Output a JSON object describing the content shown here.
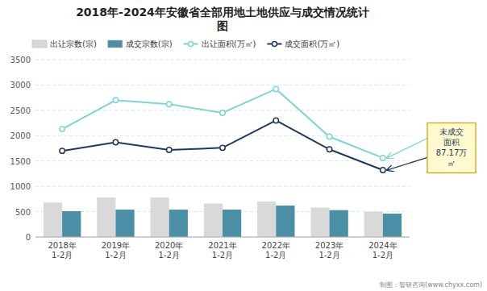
{
  "chart_data": {
    "type": "bar",
    "title": "2018年-2024年安徽省全部用地土地供应与成交情况统计\n图",
    "categories": [
      "2018年\n1-2月",
      "2019年\n1-2月",
      "2020年\n1-2月",
      "2021年\n1-2月",
      "2022年\n1-2月",
      "2023年\n1-2月",
      "2024年\n1-2月"
    ],
    "series": [
      {
        "name": "出让宗数(宗)",
        "type": "bar",
        "color": "#d9d9d9",
        "values": [
          680,
          780,
          780,
          660,
          700,
          580,
          500
        ]
      },
      {
        "name": "成交宗数(宗)",
        "type": "bar",
        "color": "#4a8fa5",
        "values": [
          510,
          540,
          540,
          540,
          620,
          530,
          460
        ]
      },
      {
        "name": "出让面积(万㎡)",
        "type": "line",
        "color": "#7dd6d1",
        "marker": "circle",
        "values": [
          2130,
          2700,
          2620,
          2450,
          2920,
          1980,
          1560
        ]
      },
      {
        "name": "成交面积(万㎡)",
        "type": "line",
        "color": "#1f3864",
        "marker": "circle",
        "values": [
          1700,
          1870,
          1720,
          1760,
          2300,
          1730,
          1320
        ]
      }
    ],
    "annotation": "未成交\n面积\n87.17万\n㎡",
    "ylim": [
      0,
      3500
    ],
    "yticks": [
      0,
      500,
      1000,
      1500,
      2000,
      2500,
      3000,
      3500
    ],
    "grid": true,
    "legend": "top",
    "footer": "制图：智研咨询(www.chyxx.com)"
  }
}
